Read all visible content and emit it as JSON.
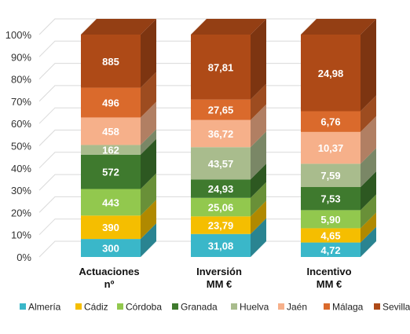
{
  "chart_data": {
    "type": "bar",
    "stacked": "percent",
    "three_d": true,
    "title": "",
    "xlabel": "",
    "ylabel": "",
    "ylim": [
      0,
      100
    ],
    "y_ticks": [
      "0%",
      "10%",
      "20%",
      "30%",
      "40%",
      "50%",
      "60%",
      "70%",
      "80%",
      "90%",
      "100%"
    ],
    "grid": true,
    "legend_position": "bottom",
    "categories": [
      [
        "Actuaciones",
        "nº"
      ],
      [
        "Inversión",
        "MM €"
      ],
      [
        "Incentivo",
        "MM €"
      ]
    ],
    "series": [
      {
        "name": "Almería",
        "color": "#3AB7C9",
        "values": [
          300,
          31.08,
          4.72
        ],
        "labels": [
          "300",
          "31,08",
          "4,72"
        ]
      },
      {
        "name": "Cádiz",
        "color": "#F5BE00",
        "values": [
          390,
          23.79,
          4.65
        ],
        "labels": [
          "390",
          "23,79",
          "4,65"
        ]
      },
      {
        "name": "Córdoba",
        "color": "#92C84E",
        "values": [
          443,
          25.06,
          5.9
        ],
        "labels": [
          "443",
          "25,06",
          "5,90"
        ]
      },
      {
        "name": "Granada",
        "color": "#3F7A2E",
        "values": [
          572,
          24.93,
          7.53
        ],
        "labels": [
          "572",
          "24,93",
          "7,53"
        ]
      },
      {
        "name": "Huelva",
        "color": "#A9BC8D",
        "values": [
          162,
          43.57,
          7.59
        ],
        "labels": [
          "162",
          "43,57",
          "7,59"
        ]
      },
      {
        "name": "Jaén",
        "color": "#F6B08A",
        "values": [
          458,
          36.72,
          10.37
        ],
        "labels": [
          "458",
          "36,72",
          "10,37"
        ]
      },
      {
        "name": "Málaga",
        "color": "#DA6A2C",
        "values": [
          496,
          27.65,
          6.76
        ],
        "labels": [
          "496",
          "27,65",
          "6,76"
        ]
      },
      {
        "name": "Sevilla",
        "color": "#AE4A17",
        "values": [
          885,
          87.81,
          24.98
        ],
        "labels": [
          "885",
          "87,81",
          "24,98"
        ]
      }
    ]
  }
}
